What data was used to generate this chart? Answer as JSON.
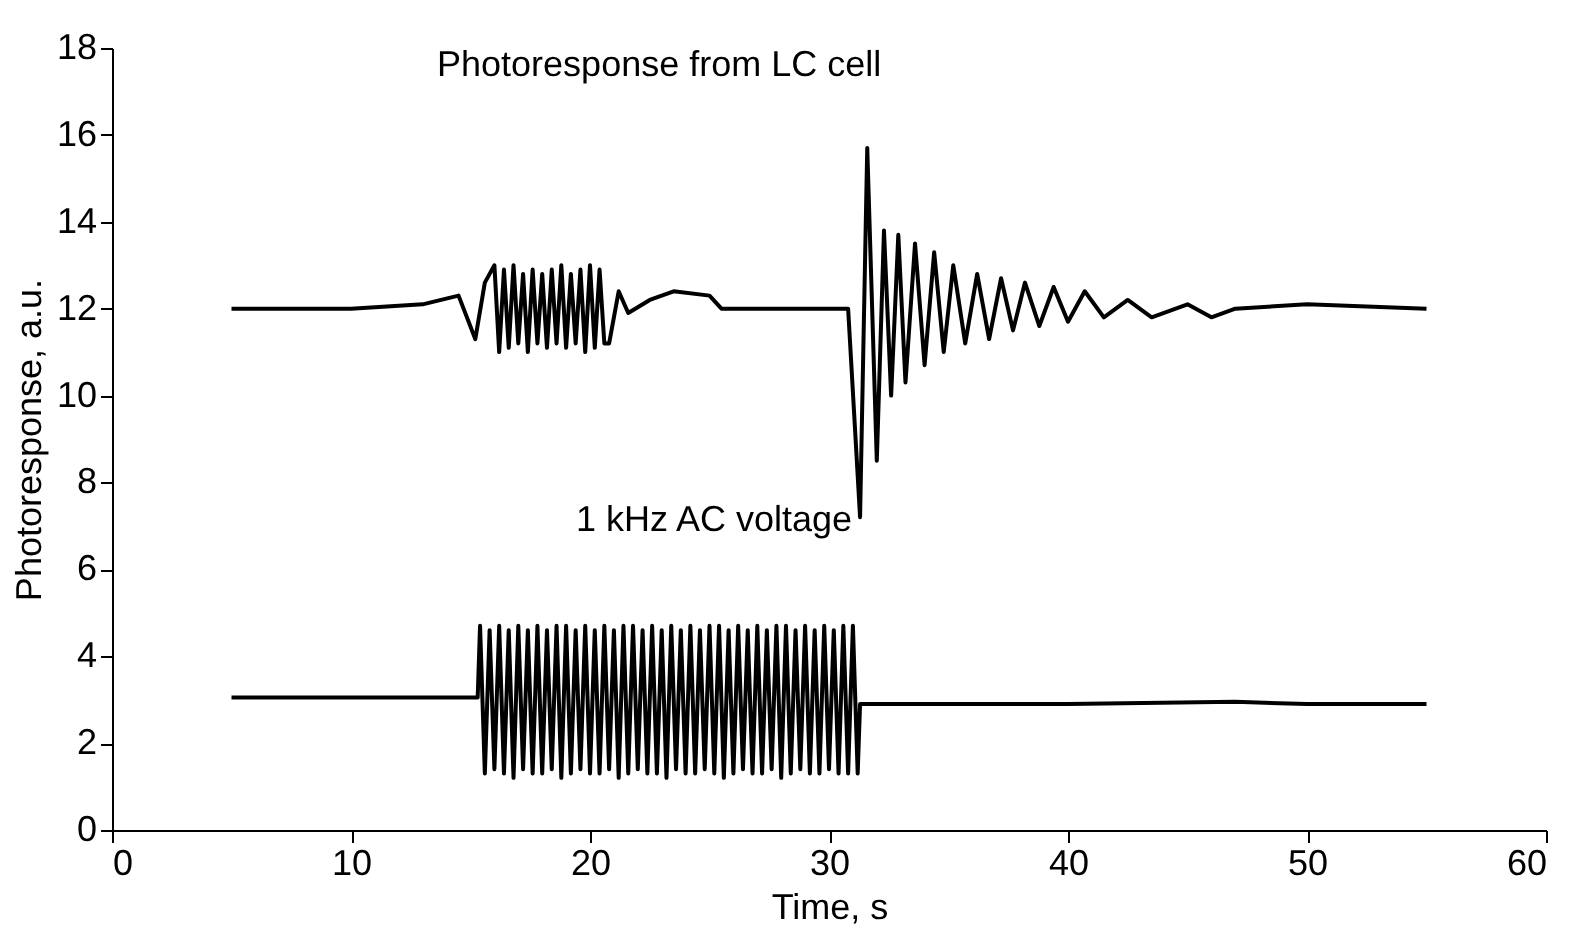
{
  "chart_data": {
    "type": "line",
    "xlabel": "Time, s",
    "ylabel": "Photoresponse, a.u.",
    "xlim": [
      0,
      60
    ],
    "xticks": [
      0,
      10,
      20,
      30,
      40,
      50,
      60
    ],
    "ylim": [
      0,
      18
    ],
    "yticks": [
      0,
      2,
      4,
      6,
      8,
      10,
      12,
      14,
      16,
      18
    ],
    "grid": false,
    "marker": "none",
    "line_style": "solid",
    "series": [
      {
        "color": "#000000",
        "x": [
          5,
          10,
          13,
          14.5,
          15.2,
          15.6,
          16.0,
          16.2,
          16.4,
          16.6,
          16.8,
          17.0,
          17.2,
          17.4,
          17.6,
          17.8,
          18.0,
          18.2,
          18.4,
          18.6,
          18.8,
          19.0,
          19.2,
          19.4,
          19.6,
          19.8,
          20.0,
          20.2,
          20.4,
          20.6,
          20.8,
          21.2,
          21.6,
          22.5,
          23.5,
          25,
          25.5,
          30.8,
          31.3,
          31.6,
          32.0,
          32.3,
          32.6,
          32.9,
          33.2,
          33.6,
          34.0,
          34.4,
          34.8,
          35.2,
          35.7,
          36.2,
          36.7,
          37.2,
          37.7,
          38.2,
          38.8,
          39.4,
          40.0,
          40.7,
          41.5,
          42.5,
          43.5,
          45,
          46,
          47,
          50,
          55
        ],
        "values": [
          12.0,
          12.0,
          12.1,
          12.3,
          11.3,
          12.6,
          13.0,
          11.0,
          12.9,
          11.1,
          13.0,
          11.2,
          12.8,
          11.0,
          12.9,
          11.2,
          12.8,
          11.1,
          12.9,
          11.2,
          13.0,
          11.1,
          12.8,
          11.2,
          12.9,
          11.0,
          13.0,
          11.1,
          12.9,
          11.2,
          11.2,
          12.4,
          11.9,
          12.2,
          12.4,
          12.3,
          12.0,
          12.0,
          7.2,
          15.7,
          8.5,
          13.8,
          10.0,
          13.7,
          10.3,
          13.5,
          10.7,
          13.3,
          11.0,
          13.0,
          11.2,
          12.8,
          11.3,
          12.7,
          11.5,
          12.6,
          11.6,
          12.5,
          11.7,
          12.4,
          11.8,
          12.2,
          11.8,
          12.1,
          11.8,
          12.0,
          12.1,
          12.0
        ]
      },
      {
        "color": "#000000",
        "x": [
          5,
          10,
          15,
          15.3,
          15.4,
          15.6,
          15.8,
          16.0,
          16.2,
          16.4,
          16.6,
          16.8,
          17.0,
          17.2,
          17.4,
          17.6,
          17.8,
          18.0,
          18.2,
          18.4,
          18.6,
          18.8,
          19.0,
          19.2,
          19.4,
          19.6,
          19.8,
          20.0,
          20.2,
          20.4,
          20.6,
          20.8,
          21.0,
          21.2,
          21.4,
          21.6,
          21.8,
          22.0,
          22.2,
          22.4,
          22.6,
          22.8,
          23.0,
          23.2,
          23.4,
          23.6,
          23.8,
          24.0,
          24.2,
          24.4,
          24.6,
          24.8,
          25.0,
          25.2,
          25.4,
          25.6,
          25.8,
          26.0,
          26.2,
          26.4,
          26.6,
          26.8,
          27.0,
          27.2,
          27.4,
          27.6,
          27.8,
          28.0,
          28.2,
          28.4,
          28.6,
          28.8,
          29.0,
          29.2,
          29.4,
          29.6,
          29.8,
          30.0,
          30.2,
          30.4,
          30.6,
          30.8,
          31.0,
          31.2,
          31.3,
          40,
          47,
          50,
          55
        ],
        "values": [
          3.05,
          3.05,
          3.05,
          3.05,
          4.7,
          1.3,
          4.6,
          1.4,
          4.7,
          1.3,
          4.6,
          1.2,
          4.7,
          1.4,
          4.6,
          1.3,
          4.7,
          1.3,
          4.6,
          1.4,
          4.7,
          1.2,
          4.7,
          1.3,
          4.6,
          1.4,
          4.7,
          1.3,
          4.6,
          1.3,
          4.7,
          1.4,
          4.6,
          1.2,
          4.7,
          1.3,
          4.7,
          1.4,
          4.6,
          1.3,
          4.7,
          1.3,
          4.6,
          1.2,
          4.7,
          1.4,
          4.6,
          1.3,
          4.7,
          1.3,
          4.6,
          1.4,
          4.7,
          1.3,
          4.7,
          1.2,
          4.6,
          1.3,
          4.7,
          1.4,
          4.6,
          1.3,
          4.7,
          1.3,
          4.6,
          1.4,
          4.7,
          1.2,
          4.7,
          1.3,
          4.6,
          1.4,
          4.7,
          1.3,
          4.6,
          1.3,
          4.7,
          1.4,
          4.6,
          1.3,
          4.7,
          1.3,
          4.7,
          1.3,
          2.9,
          2.9,
          2.95,
          2.9,
          2.9
        ]
      }
    ],
    "annotations": [
      {
        "text": "Photoresponse from LC cell",
        "x": 31.6,
        "y": 15.7
      },
      {
        "text": "1 kHz AC voltage",
        "x": 31.3,
        "y": 7.2
      }
    ]
  }
}
